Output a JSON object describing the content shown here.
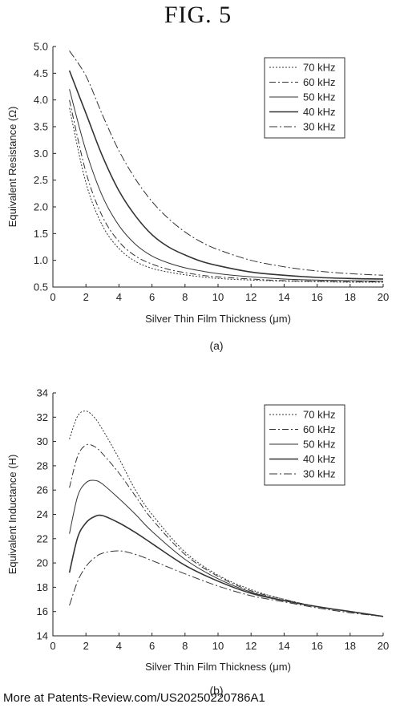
{
  "figure": {
    "title": "FIG. 5"
  },
  "footer": {
    "text": "More at Patents-Review.com/US20250220786A1"
  },
  "chart_data": [
    {
      "type": "line",
      "panel_label": "(a)",
      "xlabel": "Silver Thin Film Thickness (μm)",
      "ylabel": "Equivalent Resistance (Ω)",
      "xlim": [
        0,
        20
      ],
      "ylim": [
        0.5,
        5.0
      ],
      "xticks": [
        0,
        2,
        4,
        6,
        8,
        10,
        12,
        14,
        16,
        18,
        20
      ],
      "yticks": [
        0.5,
        1.0,
        1.5,
        2.0,
        2.5,
        3.0,
        3.5,
        4.0,
        4.5,
        5.0
      ],
      "ytick_labels": [
        "0.5",
        "1.0",
        "1.5",
        "2.0",
        "2.5",
        "3.0",
        "3.5",
        "4.0",
        "4.5",
        "5.0"
      ],
      "grid": false,
      "legend_position": "top-right",
      "x": [
        1,
        2,
        3,
        4,
        5,
        6,
        7,
        8,
        9,
        10,
        12,
        14,
        16,
        18,
        20
      ],
      "series": [
        {
          "name": "70 kHz",
          "dash": "2,2",
          "values": [
            3.85,
            2.45,
            1.65,
            1.22,
            0.98,
            0.85,
            0.78,
            0.73,
            0.69,
            0.66,
            0.63,
            0.61,
            0.6,
            0.59,
            0.59
          ]
        },
        {
          "name": "60 kHz",
          "dash": "8,3,2,3",
          "values": [
            4.0,
            2.65,
            1.82,
            1.35,
            1.08,
            0.93,
            0.83,
            0.77,
            0.72,
            0.69,
            0.65,
            0.62,
            0.61,
            0.6,
            0.6
          ]
        },
        {
          "name": "50 kHz",
          "dash": "",
          "values": [
            4.2,
            3.05,
            2.2,
            1.65,
            1.3,
            1.08,
            0.95,
            0.86,
            0.8,
            0.75,
            0.69,
            0.65,
            0.63,
            0.62,
            0.61
          ]
        },
        {
          "name": "40 kHz",
          "dash": "",
          "values": [
            4.55,
            3.75,
            2.95,
            2.3,
            1.83,
            1.48,
            1.25,
            1.1,
            0.98,
            0.9,
            0.78,
            0.72,
            0.68,
            0.66,
            0.65
          ]
        },
        {
          "name": "30 kHz",
          "dash": "10,3,2,3",
          "values": [
            4.92,
            4.45,
            3.72,
            3.05,
            2.52,
            2.1,
            1.78,
            1.53,
            1.34,
            1.2,
            1.0,
            0.88,
            0.8,
            0.75,
            0.72
          ]
        }
      ]
    },
    {
      "type": "line",
      "panel_label": "(b)",
      "xlabel": "Silver Thin Film Thickness (μm)",
      "ylabel": "Equivalent Inductance (H)",
      "xlim": [
        0,
        20
      ],
      "ylim": [
        14,
        34
      ],
      "xticks": [
        0,
        2,
        4,
        6,
        8,
        10,
        12,
        14,
        16,
        18,
        20
      ],
      "yticks": [
        14,
        16,
        18,
        20,
        22,
        24,
        26,
        28,
        30,
        32,
        34
      ],
      "ytick_labels": [
        "14",
        "16",
        "18",
        "20",
        "22",
        "24",
        "26",
        "28",
        "30",
        "32",
        "34"
      ],
      "grid": false,
      "legend_position": "top-right",
      "x": [
        1,
        1.5,
        2,
        2.5,
        3,
        4,
        5,
        6,
        8,
        10,
        12,
        14,
        16,
        18,
        20
      ],
      "series": [
        {
          "name": "70 kHz",
          "dash": "2,2",
          "values": [
            30.2,
            32.1,
            32.5,
            32.0,
            31.0,
            28.6,
            26.0,
            24.0,
            20.9,
            19.0,
            17.8,
            17.0,
            16.4,
            16.0,
            15.6
          ]
        },
        {
          "name": "60 kHz",
          "dash": "8,3,2,3",
          "values": [
            26.2,
            28.8,
            29.7,
            29.6,
            29.0,
            27.4,
            25.5,
            23.6,
            20.7,
            18.9,
            17.7,
            17.0,
            16.4,
            16.0,
            15.6
          ]
        },
        {
          "name": "50 kHz",
          "dash": "",
          "values": [
            22.4,
            25.5,
            26.6,
            26.8,
            26.5,
            25.3,
            24.0,
            22.6,
            20.3,
            18.7,
            17.6,
            16.9,
            16.4,
            16.0,
            15.6
          ]
        },
        {
          "name": "40 kHz",
          "dash": "",
          "values": [
            19.2,
            22.1,
            23.3,
            23.8,
            23.9,
            23.3,
            22.5,
            21.6,
            19.8,
            18.5,
            17.5,
            16.9,
            16.4,
            16.0,
            15.6
          ]
        },
        {
          "name": "30 kHz",
          "dash": "10,3,2,3",
          "values": [
            16.5,
            18.5,
            19.7,
            20.4,
            20.8,
            21.0,
            20.7,
            20.2,
            19.1,
            18.1,
            17.3,
            16.8,
            16.3,
            15.9,
            15.6
          ]
        }
      ]
    }
  ]
}
